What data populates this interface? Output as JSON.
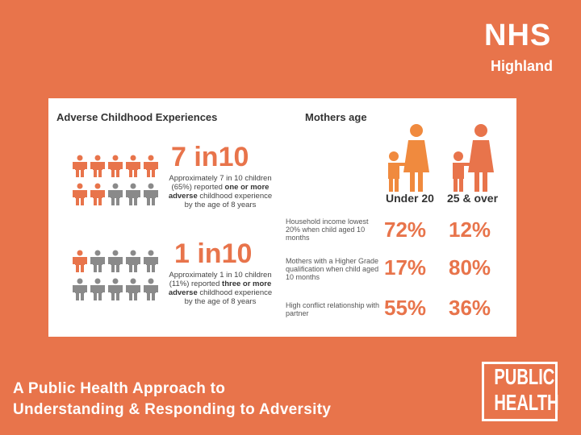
{
  "logo": {
    "nhs": "NHS",
    "region": "Highland"
  },
  "infographic": {
    "left_heading": "Adverse Childhood Experiences",
    "right_heading": "Mothers age",
    "ace_blocks": [
      {
        "stat": "7 in10",
        "desc_pre": "Approximately 7 in 10 children (65%) reported",
        "desc_bold": "one or more adverse",
        "desc_post": "childhood experience by the age of 8 years",
        "highlighted": 7,
        "total": 10
      },
      {
        "stat": "1 in10",
        "desc_pre": "Approximately 1 in 10 children (11%) reported",
        "desc_bold": "three or more adverse",
        "desc_post": "childhood experience by the age of 8 years",
        "highlighted": 1,
        "total": 10
      }
    ],
    "columns": [
      "Under 20",
      "25 & over"
    ],
    "rows": [
      {
        "label": "Household income lowest 20% when child aged 10 months",
        "under20": "72%",
        "over25": "12%"
      },
      {
        "label": "Mothers with a Higher Grade qualification when child aged 10 months",
        "under20": "17%",
        "over25": "80%"
      },
      {
        "label": "High conflict relationship with partner",
        "under20": "55%",
        "over25": "36%"
      }
    ],
    "colors": {
      "accent": "#e8744b",
      "grey": "#8a8a8a"
    }
  },
  "title_line1": "A Public Health Approach to",
  "title_line2": "Understanding & Responding to Adversity",
  "badge": {
    "line1": "PUBLIC",
    "line2": "HEALTH"
  }
}
